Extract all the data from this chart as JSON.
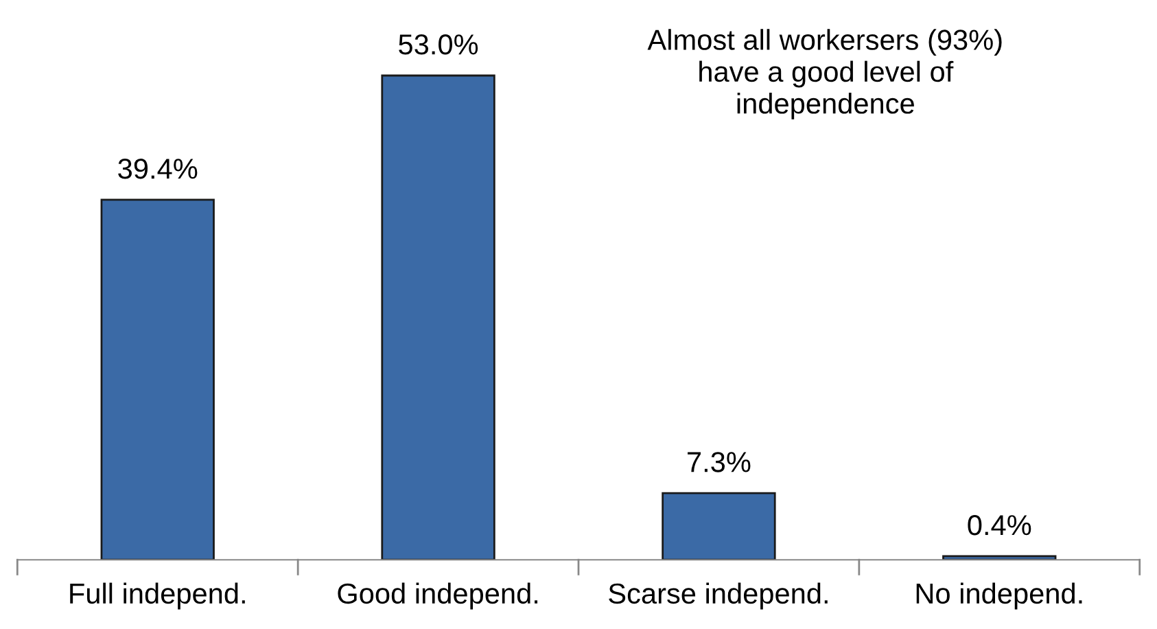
{
  "chart_data": {
    "type": "bar",
    "categories": [
      "Full independ.",
      "Good independ.",
      "Scarse independ.",
      "No independ."
    ],
    "values": [
      39.4,
      53.0,
      7.3,
      0.4
    ],
    "value_labels": [
      "39.4%",
      "53.0%",
      "7.3%",
      "0.4%"
    ],
    "color": "#3b6aa6",
    "annotations": [
      "Almost all workersers (93%)\nhave a good level of\nindependence"
    ],
    "grid": false,
    "legend": false
  }
}
